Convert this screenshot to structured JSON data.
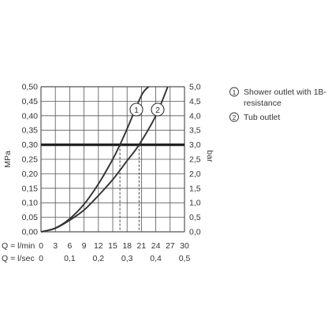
{
  "chart_data": {
    "type": "line",
    "x_axis": {
      "range": [
        0,
        30
      ],
      "ticks": [
        0,
        3,
        6,
        9,
        12,
        15,
        18,
        21,
        24,
        27,
        30
      ],
      "tick_labels": [
        "0",
        "3",
        "6",
        "9",
        "12",
        "15",
        "18",
        "21",
        "24",
        "27",
        "30"
      ],
      "row_label": "Q = l/min",
      "secondary_row_label": "Q = l/sec",
      "secondary_ticks": [
        0,
        6,
        12,
        18,
        24,
        30
      ],
      "secondary_tick_labels": [
        "0",
        "0,1",
        "0,2",
        "0,3",
        "0,4",
        "0,5"
      ]
    },
    "y_left": {
      "label": "MPa",
      "range": [
        0,
        0.5
      ],
      "ticks": [
        0,
        0.05,
        0.1,
        0.15,
        0.2,
        0.25,
        0.3,
        0.35,
        0.4,
        0.45,
        0.5
      ],
      "tick_labels": [
        "0,00",
        "0,05",
        "0,10",
        "0,15",
        "0,20",
        "0,25",
        "0,30",
        "0,35",
        "0,40",
        "0,45",
        "0,50"
      ]
    },
    "y_right": {
      "label": "bar",
      "tick_labels": [
        "0,0",
        "0,5",
        "1,0",
        "1,5",
        "2,0",
        "2,5",
        "3,0",
        "3,5",
        "4,0",
        "4,5",
        "5,0"
      ]
    },
    "grid": true,
    "reference_line": {
      "y": 0.3
    },
    "series": [
      {
        "marker": "1",
        "x": [
          0,
          3,
          6,
          9,
          12,
          15,
          16.5,
          18,
          21,
          22.5
        ],
        "y": [
          0,
          0.013,
          0.045,
          0.095,
          0.165,
          0.25,
          0.3,
          0.355,
          0.47,
          0.5
        ],
        "drop_x": 16.5
      },
      {
        "marker": "2",
        "x": [
          0,
          3,
          6,
          9,
          12,
          15,
          18,
          20.5,
          24,
          26.5
        ],
        "y": [
          0,
          0.012,
          0.04,
          0.075,
          0.125,
          0.18,
          0.245,
          0.3,
          0.4,
          0.5
        ],
        "drop_x": 20.5
      }
    ],
    "legend": {
      "placement": "right",
      "items": [
        {
          "symbol": "1",
          "text": "Shower outlet with 1B-",
          "text2": "resistance"
        },
        {
          "symbol": "2",
          "text": "Tub outlet"
        }
      ]
    },
    "colors": {
      "curve": "#333333",
      "grid": "#555555",
      "reference": "#222222"
    }
  }
}
